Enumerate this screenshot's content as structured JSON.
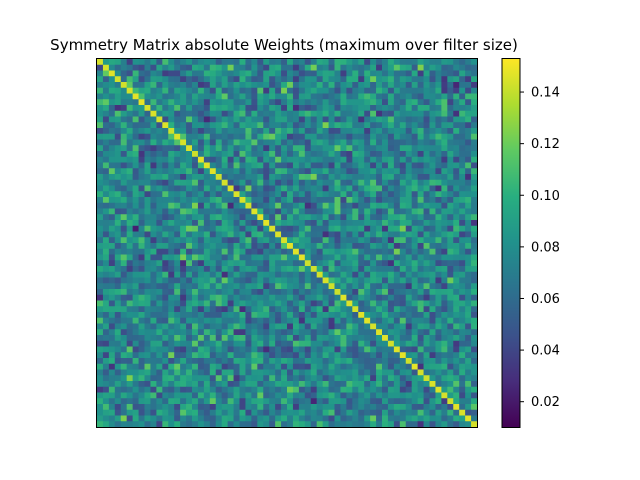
{
  "chart_data": {
    "type": "heatmap",
    "title": "Symmetry Matrix absolute Weights (maximum over filter size)",
    "xlabel": "",
    "ylabel": "",
    "grid": false,
    "rows": 64,
    "cols": 64,
    "diagonal_value": 0.148,
    "off_diagonal_range": [
      0.02,
      0.13
    ],
    "random_seed": 7,
    "colorbar": {
      "min": 0.01,
      "max": 0.153,
      "ticks": [
        0.02,
        0.04,
        0.06,
        0.08,
        0.1,
        0.12,
        0.14
      ],
      "tick_labels": [
        "0.02",
        "0.04",
        "0.06",
        "0.08",
        "0.10",
        "0.12",
        "0.14"
      ],
      "colormap": "viridis"
    }
  }
}
